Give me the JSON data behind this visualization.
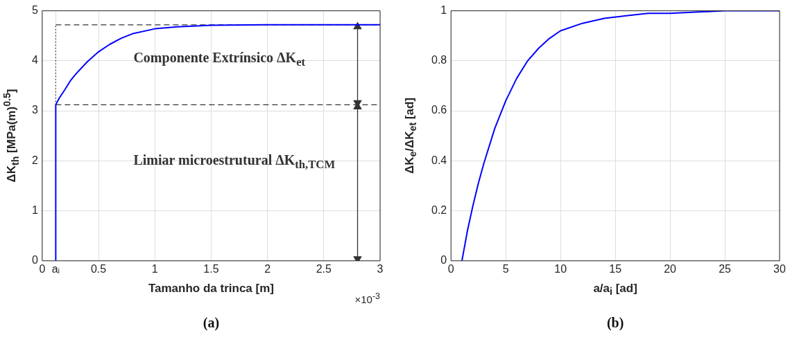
{
  "chart_data": [
    {
      "type": "line",
      "title": "(a)",
      "xlabel": "Tamanho da trinca [m]",
      "ylabel": "ΔK$_{th}$   [MPa(m)$^{0.5}$]",
      "series": [
        {
          "color": "#0000ff",
          "x": [
            0.12,
            0.12,
            0.15,
            0.2,
            0.25,
            0.3,
            0.4,
            0.5,
            0.6,
            0.7,
            0.8,
            1.0,
            1.2,
            1.5,
            2.0,
            3.0
          ],
          "values": [
            0,
            3.12,
            3.25,
            3.42,
            3.6,
            3.74,
            3.98,
            4.18,
            4.33,
            4.45,
            4.54,
            4.64,
            4.68,
            4.71,
            4.72,
            4.72
          ]
        },
        {
          "color": "#333333",
          "line_style": "dashed",
          "marker": "none",
          "x": [
            0.12,
            3.0
          ],
          "values": [
            4.72,
            4.72
          ]
        },
        {
          "color": "#333333",
          "line_style": "dashed",
          "marker": "none",
          "x": [
            0.12,
            3.0
          ],
          "values": [
            3.12,
            3.12
          ]
        },
        {
          "color": "#333333",
          "line_style": "dotted",
          "marker": "none",
          "x": [
            0.12,
            0.12
          ],
          "values": [
            3.12,
            4.72
          ]
        },
        {
          "color": "#333333",
          "marker": "triangle",
          "x": [
            2.8,
            2.8
          ],
          "values": [
            3.16,
            4.68
          ]
        },
        {
          "color": "#333333",
          "marker": "triangle",
          "x": [
            2.8,
            2.8
          ],
          "values": [
            0.04,
            3.08
          ]
        }
      ],
      "xlim": [
        0,
        3
      ],
      "xticks": [
        0,
        {
          "value": 0.12,
          "label": "aᵢ"
        },
        0.5,
        1,
        1.5,
        2,
        2.5,
        3
      ],
      "ylim": [
        0,
        5
      ],
      "yticks": [
        0,
        1,
        2,
        3,
        4,
        5
      ],
      "grid": true,
      "legend": false,
      "marker": "none",
      "line_style": "solid",
      "annotations": [
        "×10$^{-3}$",
        "Componente Extrínsico  ΔK$_{et}$",
        "Limiar microestrutural  ΔK$_{th,TCM}$"
      ]
    },
    {
      "type": "line",
      "title": "(b)",
      "xlabel": "a/a$_{i}$ [ad]",
      "ylabel": "ΔK$_{e}$/ΔK$_{et}$ [ad]",
      "series": [
        {
          "color": "#0000ff",
          "x": [
            1,
            1.5,
            2,
            2.5,
            3,
            4,
            5,
            6,
            7,
            8,
            9,
            10,
            12,
            14,
            16,
            18,
            20,
            25,
            30
          ],
          "values": [
            0,
            0.12,
            0.22,
            0.31,
            0.39,
            0.53,
            0.64,
            0.73,
            0.8,
            0.85,
            0.89,
            0.92,
            0.95,
            0.97,
            0.98,
            0.99,
            0.99,
            1,
            1
          ]
        }
      ],
      "xlim": [
        0,
        30
      ],
      "xticks": [
        0,
        5,
        10,
        15,
        20,
        25,
        30
      ],
      "ylim": [
        0,
        1
      ],
      "yticks": [
        0,
        0.2,
        0.4,
        0.6,
        0.8,
        1
      ],
      "grid": true,
      "legend": false,
      "marker": "none",
      "line_style": "solid"
    }
  ]
}
